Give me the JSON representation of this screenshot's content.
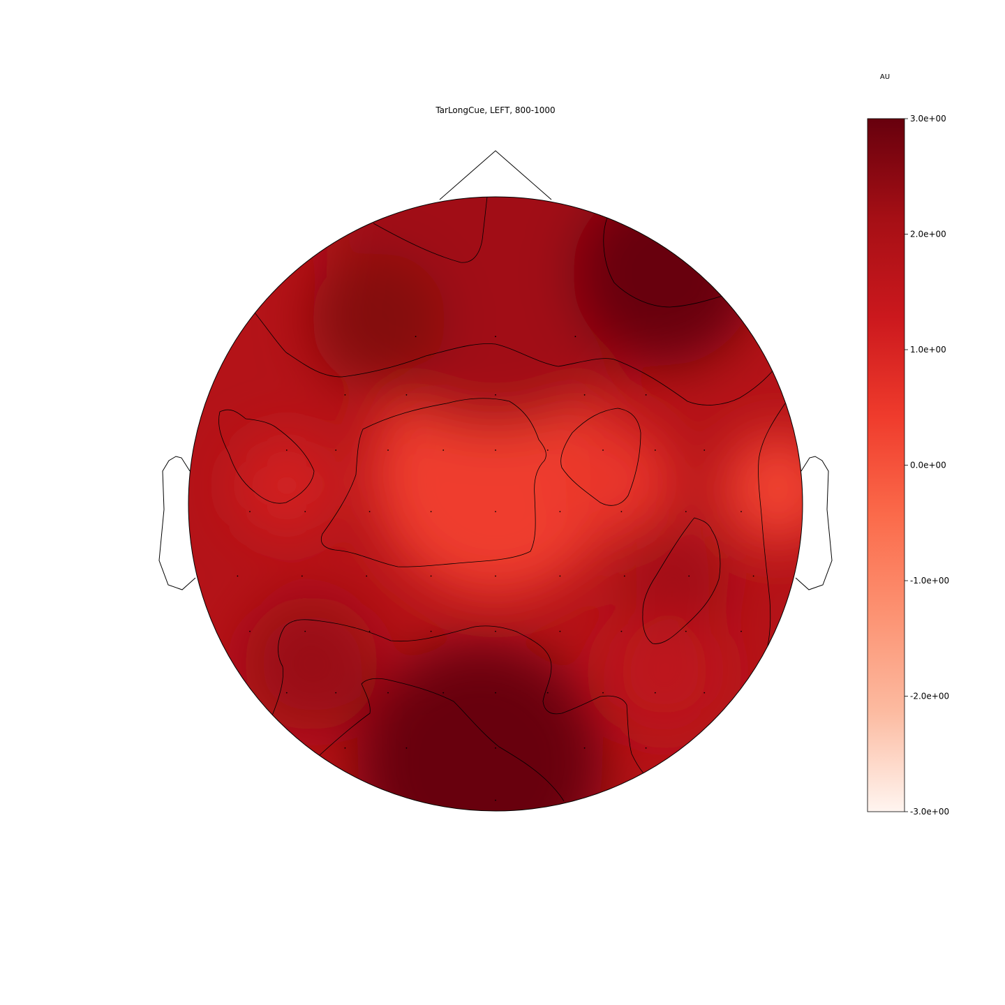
{
  "chart_data": {
    "type": "heatmap",
    "subtype": "eeg-topomap",
    "title": "TarLongCue, LEFT, 800-1000",
    "colorbar": {
      "unit_label": "AU",
      "range": [
        -3.0,
        3.0
      ],
      "colormap": "Reds",
      "colors": [
        "#fff5f0",
        "#fcbba1",
        "#fc9272",
        "#fb6a4a",
        "#ef3b2c",
        "#cb181d",
        "#a50f15",
        "#67000d"
      ],
      "ticks": [
        {
          "value": 3.0,
          "label": "3.0e+00"
        },
        {
          "value": 2.0,
          "label": "2.0e+00"
        },
        {
          "value": 1.0,
          "label": "1.0e+00"
        },
        {
          "value": 0.0,
          "label": "0.0e+00"
        },
        {
          "value": -1.0,
          "label": "-1.0e+00"
        },
        {
          "value": -2.0,
          "label": "-2.0e+00"
        },
        {
          "value": -3.0,
          "label": "-3.0e+00"
        }
      ]
    },
    "contour_levels": [
      1.0,
      2.0,
      3.0
    ],
    "value_range_shown": [
      0.3,
      3.0
    ],
    "regions": [
      {
        "area": "central",
        "value": 0.4
      },
      {
        "area": "right-central",
        "value": 0.6
      },
      {
        "area": "right-temporal",
        "value": 0.3
      },
      {
        "area": "left-temporal",
        "value": 1.1
      },
      {
        "area": "frontal",
        "value": 2.2
      },
      {
        "area": "right-frontal",
        "value": 3.0
      },
      {
        "area": "left-frontal",
        "value": 2.6
      },
      {
        "area": "occipital",
        "value": 3.0
      },
      {
        "area": "left-parietal",
        "value": 2.3
      },
      {
        "area": "right-parietal",
        "value": 2.2
      },
      {
        "area": "right-occipital",
        "value": 1.6
      }
    ]
  }
}
